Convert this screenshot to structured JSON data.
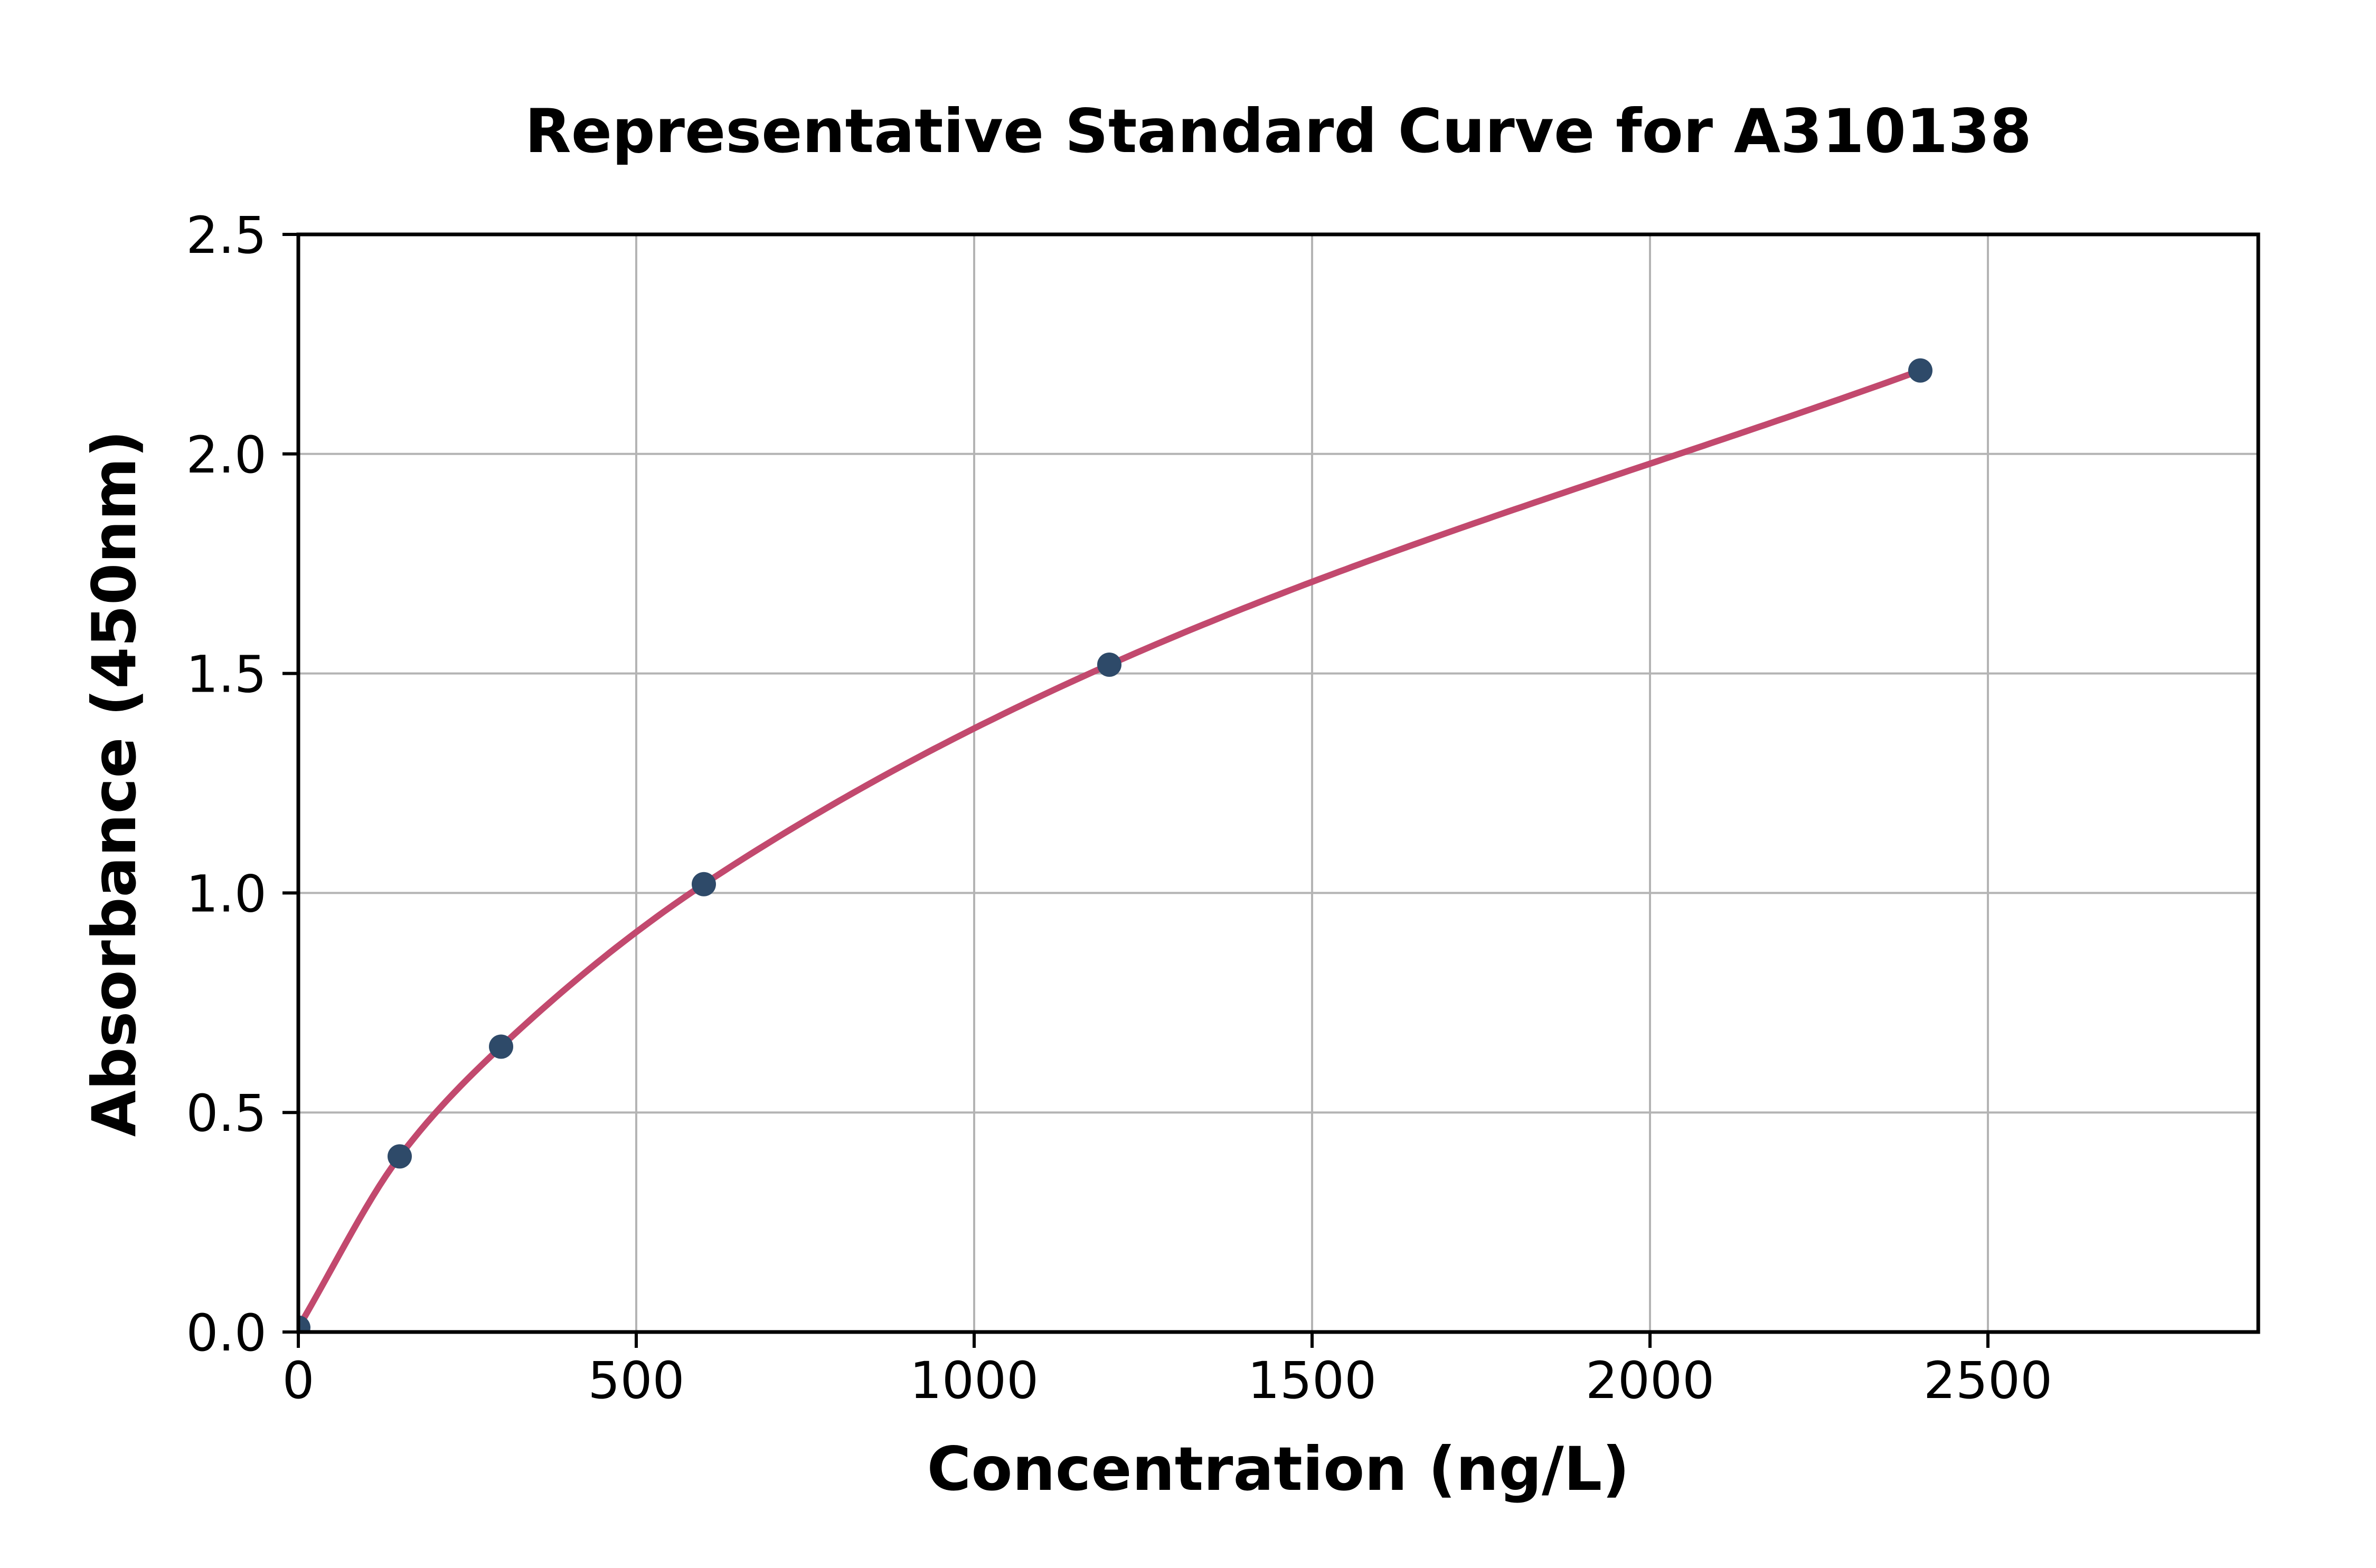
{
  "figure": {
    "background": "#ffffff"
  },
  "chart_data": {
    "type": "scatter",
    "title": "Representative Standard Curve for A310138",
    "xlabel": "Concentration (ng/L)",
    "ylabel": "Absorbance (450nm)",
    "xlim": [
      0,
      2900
    ],
    "ylim": [
      0,
      2.5
    ],
    "x_ticks": {
      "values": [
        0,
        500,
        1000,
        1500,
        2000,
        2500
      ],
      "labels": [
        "0",
        "500",
        "1000",
        "1500",
        "2000",
        "2500"
      ]
    },
    "y_ticks": {
      "values": [
        0,
        0.5,
        1.0,
        1.5,
        2.0,
        2.5
      ],
      "labels": [
        "0.0",
        "0.5",
        "1.0",
        "1.5",
        "2.0",
        "2.5"
      ]
    },
    "grid": true,
    "legend": null,
    "points": [
      {
        "x": 0,
        "y": 0.01
      },
      {
        "x": 150,
        "y": 0.4
      },
      {
        "x": 300,
        "y": 0.65
      },
      {
        "x": 600,
        "y": 1.02
      },
      {
        "x": 1200,
        "y": 1.52
      },
      {
        "x": 2400,
        "y": 2.19
      }
    ],
    "fit_line": {
      "name": "standard-curve-fit",
      "x_start": 0,
      "x_end": 2400
    },
    "colors": {
      "curve": "#c2496e",
      "marker": "#2e4a69",
      "grid": "#b4b4b4",
      "axis": "#000000",
      "background": "#ffffff"
    }
  }
}
